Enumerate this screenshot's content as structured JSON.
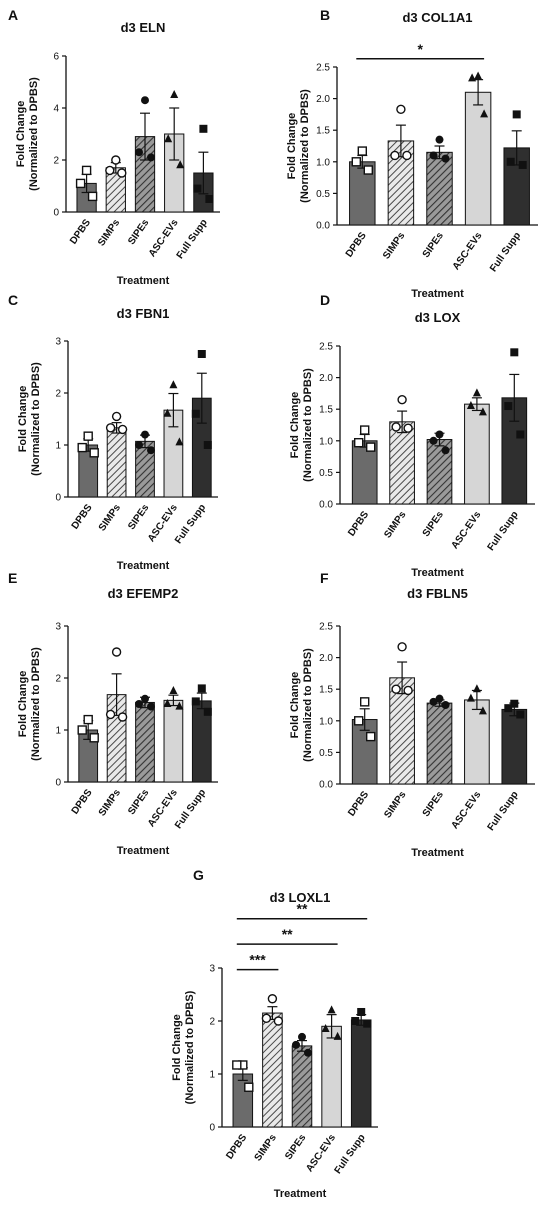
{
  "chart_data": [
    {
      "type": "bar",
      "panel_label": "A",
      "title": "d3 ELN",
      "xlabel": "Treatment",
      "ylabel": "Fold Change",
      "ylabel2": "(Normalized to DPBS)",
      "ylim": [
        0,
        6
      ],
      "yticks": [
        "0",
        "2",
        "4",
        "6"
      ],
      "categories": [
        "DPBS",
        "SIMPs",
        "SIPEs",
        "ASC-EVs",
        "Full Supp"
      ],
      "values": [
        1.1,
        1.7,
        2.9,
        3.0,
        1.5
      ],
      "errors": [
        0.35,
        0.2,
        0.9,
        1.0,
        0.8
      ],
      "points": [
        [
          1.6,
          1.1,
          0.6
        ],
        [
          2.0,
          1.6,
          1.5
        ],
        [
          4.3,
          2.3,
          2.1
        ],
        [
          4.5,
          2.8,
          1.8
        ],
        [
          3.2,
          0.9,
          0.5
        ]
      ],
      "significance": [],
      "grid": false
    },
    {
      "type": "bar",
      "panel_label": "B",
      "title": "d3 COL1A1",
      "xlabel": "Treatment",
      "ylabel": "Fold Change",
      "ylabel2": "(Normalized to DPBS)",
      "ylim": [
        0,
        2.5
      ],
      "yticks": [
        "0.0",
        "0.5",
        "1.0",
        "1.5",
        "2.0",
        "2.5"
      ],
      "categories": [
        "DPBS",
        "SIMPs",
        "SIPEs",
        "ASC-EVs",
        "Full Supp"
      ],
      "values": [
        1.0,
        1.33,
        1.15,
        2.1,
        1.22
      ],
      "errors": [
        0.1,
        0.25,
        0.1,
        0.2,
        0.27
      ],
      "points": [
        [
          1.17,
          1.0,
          0.87
        ],
        [
          1.83,
          1.1,
          1.1
        ],
        [
          1.35,
          1.1,
          1.05
        ],
        [
          2.35,
          2.32,
          1.75
        ],
        [
          1.75,
          1.0,
          0.95
        ]
      ],
      "significance": [
        {
          "label": "*",
          "from": 0,
          "to": 3,
          "y": 2.63
        }
      ],
      "grid": false
    },
    {
      "type": "bar",
      "panel_label": "C",
      "title": "d3 FBN1",
      "xlabel": "Treatment",
      "ylabel": "Fold Change",
      "ylabel2": "(Normalized to DPBS)",
      "ylim": [
        0,
        3
      ],
      "yticks": [
        "0",
        "1",
        "2",
        "3"
      ],
      "categories": [
        "DPBS",
        "SIMPs",
        "SIPEs",
        "ASC-EVs",
        "Full Supp"
      ],
      "values": [
        1.0,
        1.33,
        1.07,
        1.67,
        1.9
      ],
      "errors": [
        0.12,
        0.1,
        0.12,
        0.32,
        0.48
      ],
      "points": [
        [
          1.17,
          0.95,
          0.85
        ],
        [
          1.55,
          1.33,
          1.3
        ],
        [
          1.2,
          1.0,
          0.9
        ],
        [
          2.15,
          1.6,
          1.05
        ],
        [
          2.75,
          1.6,
          1.0
        ]
      ],
      "significance": [],
      "grid": false
    },
    {
      "type": "bar",
      "panel_label": "D",
      "title": "d3 LOX",
      "xlabel": "Treatment",
      "ylabel": "Fold Change",
      "ylabel2": "(Normalized to DPBS)",
      "ylim": [
        0,
        2.5
      ],
      "yticks": [
        "0.0",
        "0.5",
        "1.0",
        "1.5",
        "2.0",
        "2.5"
      ],
      "categories": [
        "DPBS",
        "SIMPs",
        "SIPEs",
        "ASC-EVs",
        "Full Supp"
      ],
      "values": [
        1.0,
        1.3,
        1.02,
        1.58,
        1.68
      ],
      "errors": [
        0.1,
        0.17,
        0.1,
        0.1,
        0.37
      ],
      "points": [
        [
          1.17,
          0.97,
          0.9
        ],
        [
          1.65,
          1.22,
          1.2
        ],
        [
          1.1,
          1.0,
          0.85
        ],
        [
          1.75,
          1.55,
          1.45
        ],
        [
          2.4,
          1.55,
          1.1
        ]
      ],
      "significance": [],
      "grid": false
    },
    {
      "type": "bar",
      "panel_label": "E",
      "title": "d3 EFEMP2",
      "xlabel": "Treatment",
      "ylabel": "Fold Change",
      "ylabel2": "(Normalized to DPBS)",
      "ylim": [
        0,
        3
      ],
      "yticks": [
        "0",
        "1",
        "2",
        "3"
      ],
      "categories": [
        "DPBS",
        "SIMPs",
        "SIPEs",
        "ASC-EVs",
        "Full Supp"
      ],
      "values": [
        1.0,
        1.68,
        1.53,
        1.57,
        1.56
      ],
      "errors": [
        0.18,
        0.4,
        0.1,
        0.1,
        0.15
      ],
      "points": [
        [
          1.2,
          1.0,
          0.85
        ],
        [
          2.5,
          1.3,
          1.25
        ],
        [
          1.6,
          1.5,
          1.45
        ],
        [
          1.75,
          1.5,
          1.45
        ],
        [
          1.8,
          1.55,
          1.35
        ]
      ],
      "significance": [],
      "grid": false
    },
    {
      "type": "bar",
      "panel_label": "F",
      "title": "d3 FBLN5",
      "xlabel": "Treatment",
      "ylabel": "Fold Change",
      "ylabel2": "(Normalized to DPBS)",
      "ylim": [
        0,
        2.5
      ],
      "yticks": [
        "0.0",
        "0.5",
        "1.0",
        "1.5",
        "2.0",
        "2.5"
      ],
      "categories": [
        "DPBS",
        "SIMPs",
        "SIPEs",
        "ASC-EVs",
        "Full Supp"
      ],
      "values": [
        1.02,
        1.68,
        1.28,
        1.33,
        1.18
      ],
      "errors": [
        0.17,
        0.25,
        0.05,
        0.15,
        0.1
      ],
      "points": [
        [
          1.3,
          1.0,
          0.75
        ],
        [
          2.17,
          1.5,
          1.48
        ],
        [
          1.35,
          1.3,
          1.25
        ],
        [
          1.5,
          1.35,
          1.15
        ],
        [
          1.27,
          1.2,
          1.1
        ]
      ],
      "significance": [],
      "grid": false
    },
    {
      "type": "bar",
      "panel_label": "G",
      "title": "d3 LOXL1",
      "xlabel": "Treatment",
      "ylabel": "Fold Change",
      "ylabel2": "(Normalized to DPBS)",
      "ylim": [
        0,
        3
      ],
      "yticks": [
        "0",
        "1",
        "2",
        "3"
      ],
      "categories": [
        "DPBS",
        "SIMPs",
        "SIPEs",
        "ASC-EVs",
        "Full Supp"
      ],
      "values": [
        1.0,
        2.15,
        1.53,
        1.9,
        2.02
      ],
      "errors": [
        0.12,
        0.12,
        0.1,
        0.22,
        0.1
      ],
      "points": [
        [
          1.17,
          1.17,
          0.75
        ],
        [
          2.42,
          2.05,
          2.0
        ],
        [
          1.7,
          1.55,
          1.4
        ],
        [
          2.2,
          1.85,
          1.7
        ],
        [
          2.17,
          2.0,
          1.95
        ]
      ],
      "significance": [
        {
          "label": "***",
          "from": 0,
          "to": 1,
          "y": 2.97
        },
        {
          "label": "**",
          "from": 0,
          "to": 3,
          "y": 3.45
        },
        {
          "label": "**",
          "from": 0,
          "to": 4,
          "y": 3.93
        }
      ],
      "grid": false
    }
  ],
  "styles": {
    "bar_fills": [
      "#6b6b6b",
      "hatch",
      "hatch-dark",
      "#d6d6d6",
      "#2f2f2f"
    ],
    "point_shapes": [
      "square-open",
      "circle-open",
      "circle",
      "triangle",
      "square"
    ],
    "ink": "#111111"
  }
}
